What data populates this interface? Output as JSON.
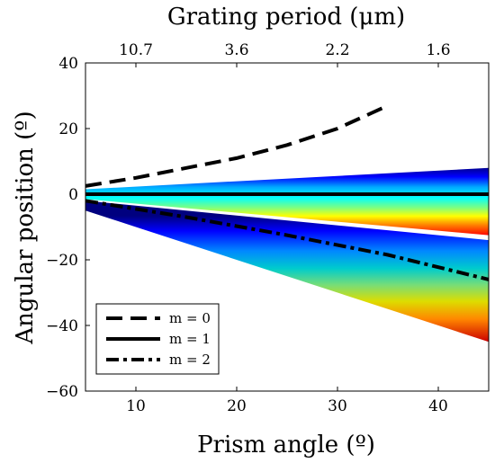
{
  "chart_data": {
    "type": "line",
    "xlabel": "Prism angle (º)",
    "ylabel": "Angular position (º)",
    "top_xlabel": "Grating period (μm)",
    "xlim": [
      5,
      45
    ],
    "ylim": [
      -60,
      40
    ],
    "x_ticks": [
      10,
      20,
      30,
      40
    ],
    "y_ticks": [
      40,
      20,
      0,
      -20,
      -40,
      -60
    ],
    "top_ticks": [
      {
        "at": 10,
        "label": "10.7"
      },
      {
        "at": 20,
        "label": "3.6"
      },
      {
        "at": 30,
        "label": "2.2"
      },
      {
        "at": 40,
        "label": "1.6"
      }
    ],
    "grid": false,
    "legend_position": "bottom-left",
    "series": [
      {
        "name": "m = 0",
        "style": "dashed",
        "color": "#000000",
        "points": [
          [
            5,
            2.5
          ],
          [
            10,
            5
          ],
          [
            15,
            8
          ],
          [
            20,
            11
          ],
          [
            25,
            15
          ],
          [
            30,
            20
          ],
          [
            35,
            27
          ]
        ]
      },
      {
        "name": "m = 1",
        "style": "solid",
        "color": "#000000",
        "points": [
          [
            5,
            0
          ],
          [
            45,
            0
          ]
        ]
      },
      {
        "name": "m = 2",
        "style": "dash-dot",
        "color": "#000000",
        "points": [
          [
            5,
            -2
          ],
          [
            15,
            -7
          ],
          [
            25,
            -12.5
          ],
          [
            35,
            -18.5
          ],
          [
            45,
            -26
          ]
        ]
      }
    ],
    "bands": [
      {
        "order": 1,
        "x": [
          5,
          45
        ],
        "upper": [
          1.5,
          8
        ],
        "lower": [
          -1.5,
          -12.5
        ],
        "gradient": "blue-to-red downward"
      },
      {
        "order": 2,
        "x": [
          5,
          45
        ],
        "upper": [
          -2,
          -14
        ],
        "lower": [
          -5,
          -45
        ],
        "gradient": "blue-to-red downward"
      }
    ]
  }
}
